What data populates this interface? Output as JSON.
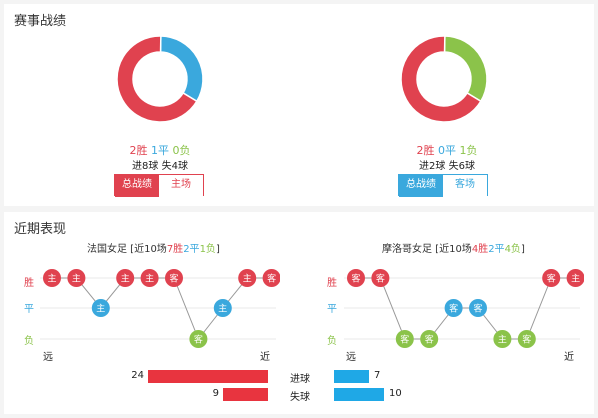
{
  "record": {
    "title": "赛事战绩",
    "left": {
      "win": "2胜",
      "draw": "1平",
      "lose": "0负",
      "goals": "进8球",
      "conceded": "失4球",
      "slices": [
        {
          "value": 2,
          "color": "#e0424f"
        },
        {
          "value": 1,
          "color": "#3aa8dd"
        }
      ],
      "tabs": [
        "总战绩",
        "主场"
      ],
      "accent": "#e0424f"
    },
    "right": {
      "win": "2胜",
      "draw": "0平",
      "lose": "1负",
      "goals": "进2球",
      "conceded": "失6球",
      "slices": [
        {
          "value": 2,
          "color": "#e0424f"
        },
        {
          "value": 1,
          "color": "#8bc34a"
        }
      ],
      "tabs": [
        "总战绩",
        "客场"
      ],
      "accent": "#3aa8dd"
    }
  },
  "form": {
    "title": "近期表现",
    "axis_win": "胜",
    "axis_draw": "平",
    "axis_lose": "负",
    "far": "远",
    "near": "近",
    "left": {
      "team": "法国女足",
      "prefix": " [近10场",
      "w": "7胜",
      "d": "2平",
      "l": "1负",
      "suffix": "]",
      "matches": [
        {
          "r": "W",
          "v": "主"
        },
        {
          "r": "W",
          "v": "主"
        },
        {
          "r": "D",
          "v": "主"
        },
        {
          "r": "W",
          "v": "主"
        },
        {
          "r": "W",
          "v": "主"
        },
        {
          "r": "W",
          "v": "客"
        },
        {
          "r": "L",
          "v": "客"
        },
        {
          "r": "D",
          "v": "主"
        },
        {
          "r": "W",
          "v": "主"
        },
        {
          "r": "W",
          "v": "客"
        }
      ]
    },
    "right": {
      "team": "摩洛哥女足",
      "prefix": " [近10场",
      "w": "4胜",
      "d": "2平",
      "l": "4负",
      "suffix": "]",
      "matches": [
        {
          "r": "W",
          "v": "客"
        },
        {
          "r": "W",
          "v": "客"
        },
        {
          "r": "L",
          "v": "客"
        },
        {
          "r": "L",
          "v": "客"
        },
        {
          "r": "D",
          "v": "客"
        },
        {
          "r": "D",
          "v": "客"
        },
        {
          "r": "L",
          "v": "主"
        },
        {
          "r": "L",
          "v": "客"
        },
        {
          "r": "W",
          "v": "客"
        },
        {
          "r": "W",
          "v": "主"
        }
      ]
    },
    "stats": [
      {
        "label": "进球",
        "left": 24,
        "right": 7
      },
      {
        "label": "失球",
        "left": 9,
        "right": 10
      }
    ],
    "stat_max": 24,
    "colors": {
      "left_bar": "#e8343f",
      "right_bar": "#1fa8e6"
    }
  }
}
